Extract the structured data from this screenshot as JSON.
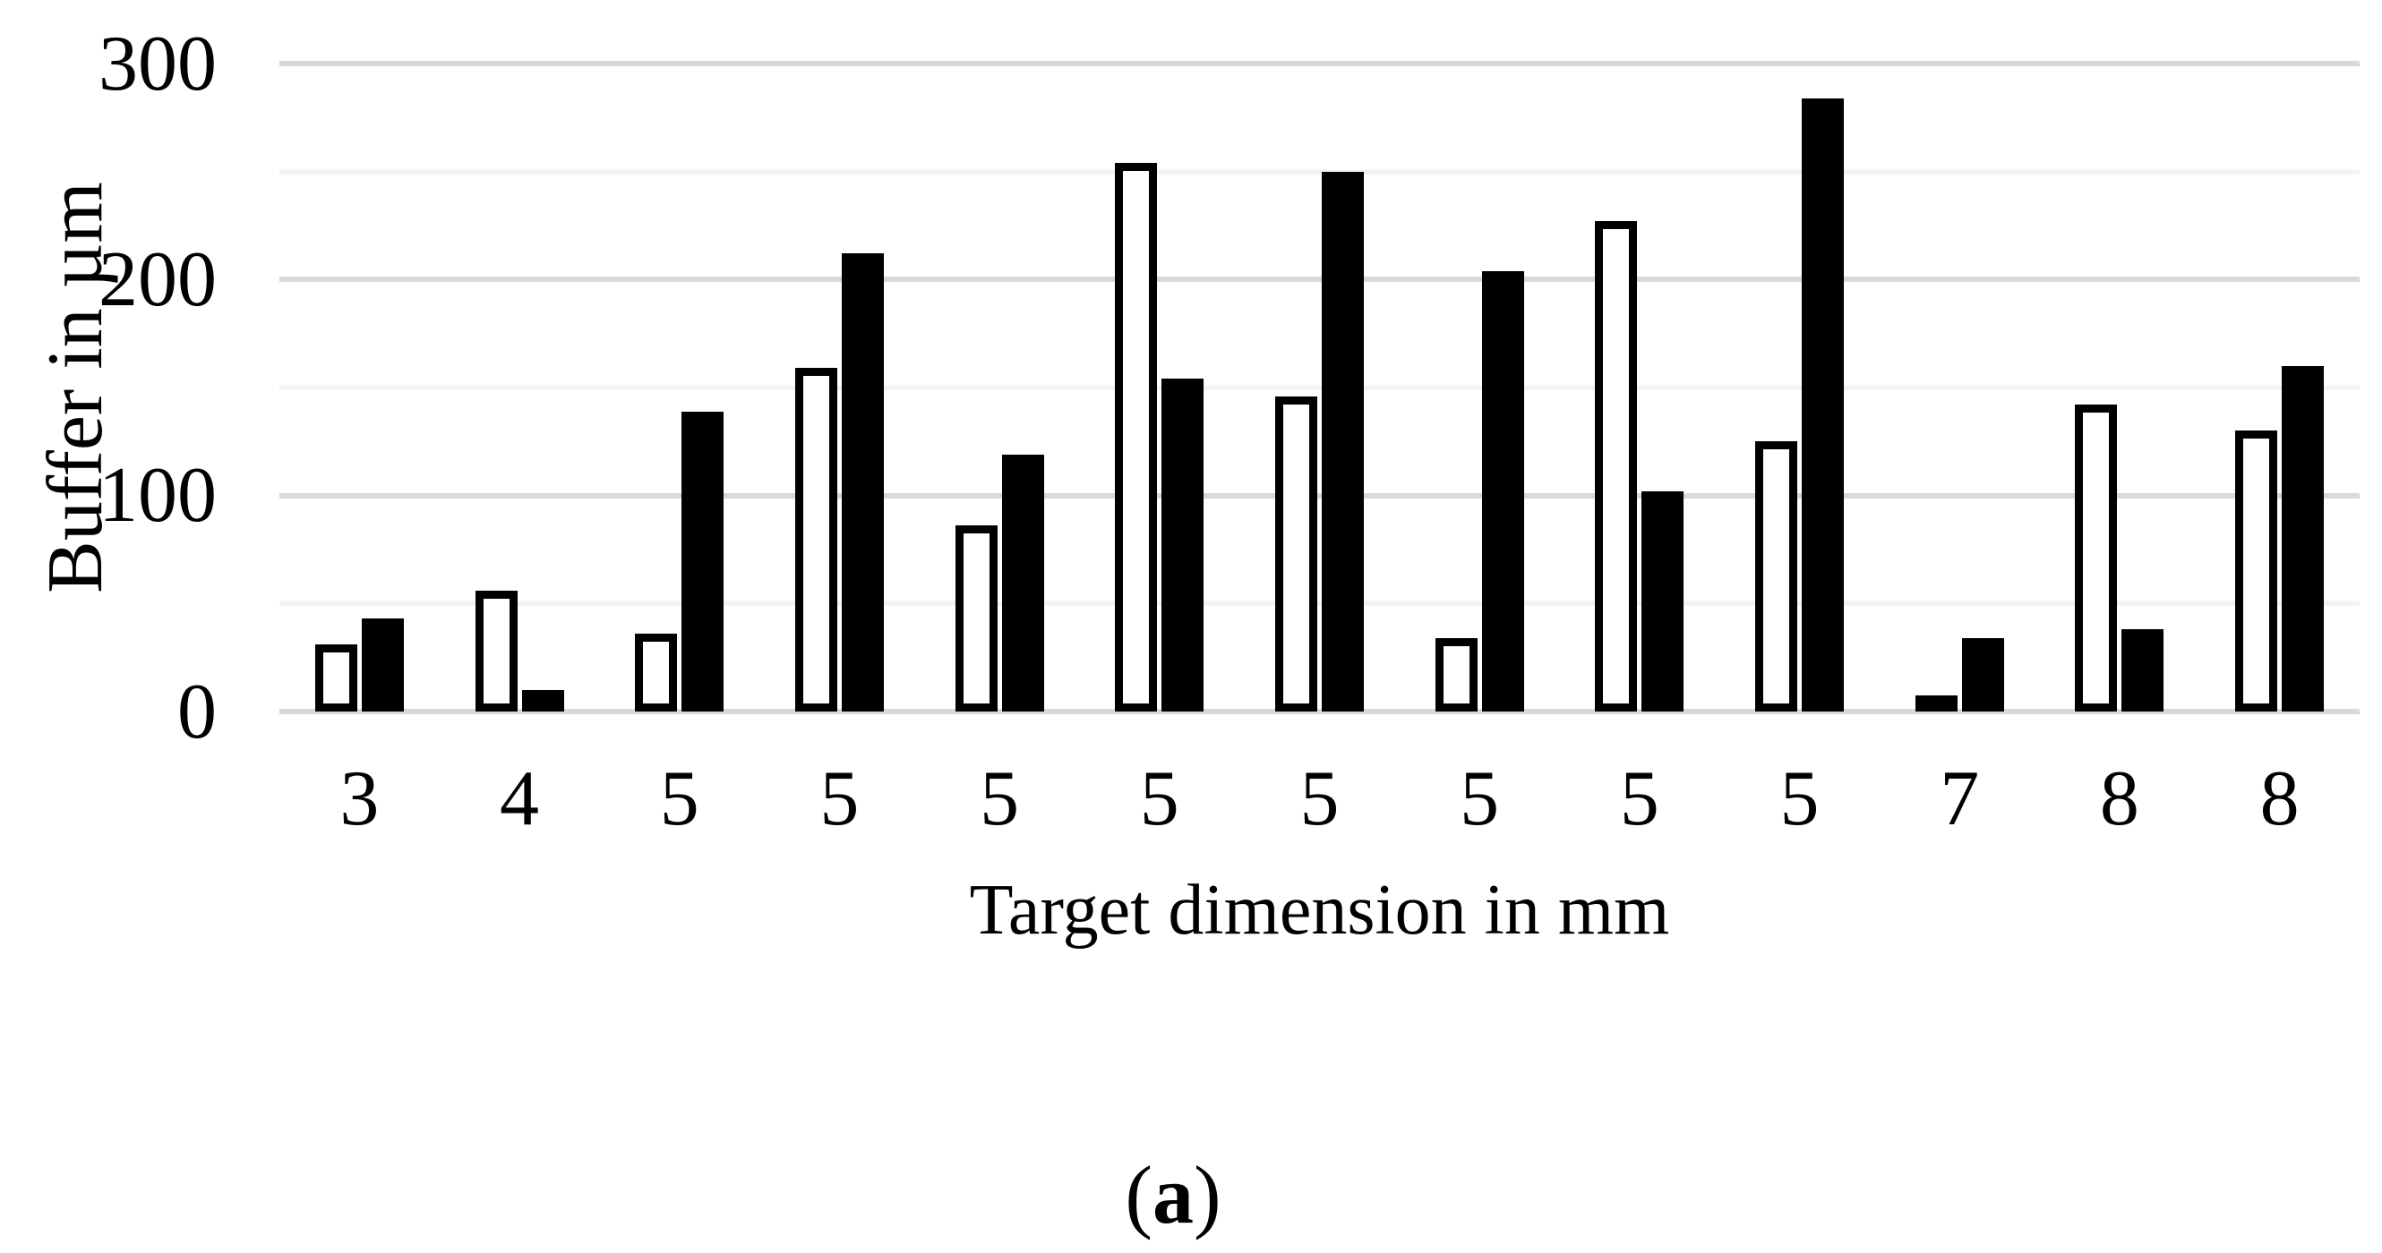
{
  "chart_data": {
    "type": "bar",
    "title": "",
    "xlabel": "Target dimension in mm",
    "ylabel": "Buffer in µm",
    "categories": [
      "3",
      "4",
      "5",
      "5",
      "5",
      "5",
      "5",
      "5",
      "5",
      "5",
      "7",
      "8",
      "8"
    ],
    "series": [
      {
        "name": "white-bars",
        "fill": "#ffffff",
        "border": "#000000",
        "values": [
          31,
          56,
          36,
          159,
          86,
          254,
          146,
          34,
          227,
          125,
          7,
          142,
          130
        ]
      },
      {
        "name": "black-bars",
        "fill": "#000000",
        "border": "#000000",
        "values": [
          43,
          10,
          139,
          212,
          119,
          154,
          250,
          204,
          102,
          284,
          34,
          38,
          160
        ]
      }
    ],
    "ylim": [
      0,
      300
    ],
    "ytick_labels": [
      "0",
      "100",
      "200",
      "300"
    ],
    "yticks": [
      0,
      100,
      200,
      300
    ],
    "gridline_step": 50,
    "grid_on": true,
    "legend": "none"
  },
  "caption": {
    "open": "(",
    "letter": "a",
    "close": ")"
  },
  "colors": {
    "background": "#ffffff",
    "text": "#000000",
    "grid_major": "#d9d9d9",
    "grid_minor": "#f2f2f2",
    "bar_white": "#ffffff",
    "bar_black": "#000000"
  }
}
